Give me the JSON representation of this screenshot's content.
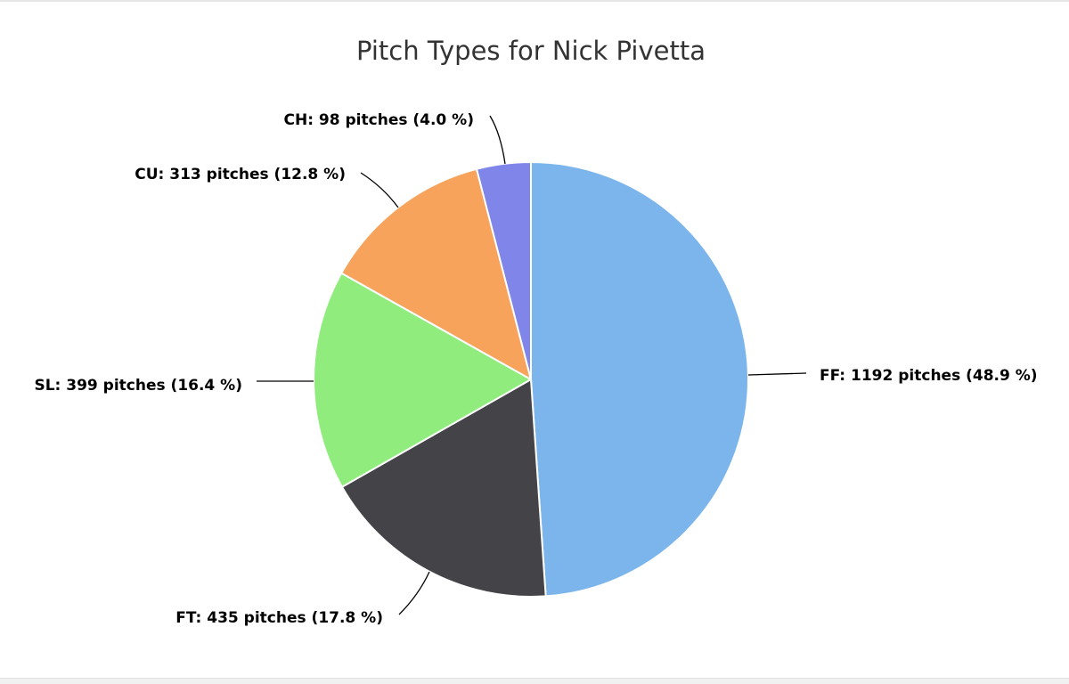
{
  "chart_data": {
    "type": "pie",
    "title": "Pitch Types for Nick Pivetta",
    "categories": [
      "FF",
      "FT",
      "SL",
      "CU",
      "CH"
    ],
    "values": [
      1192,
      435,
      399,
      313,
      98
    ],
    "percentages": [
      48.9,
      17.8,
      16.4,
      12.8,
      4.0
    ],
    "colors": [
      "#7cb5ec",
      "#434348",
      "#90ed7d",
      "#f7a35c",
      "#8085e9"
    ],
    "labels": [
      "FF: 1192 pitches (48.9 %)",
      "FT: 435 pitches (17.8 %)",
      "SL: 399 pitches (16.4 %)",
      "CU: 313 pitches (12.8 %)",
      "CH: 98 pitches (4.0 %)"
    ],
    "legend": "none (data labels with connectors)"
  }
}
